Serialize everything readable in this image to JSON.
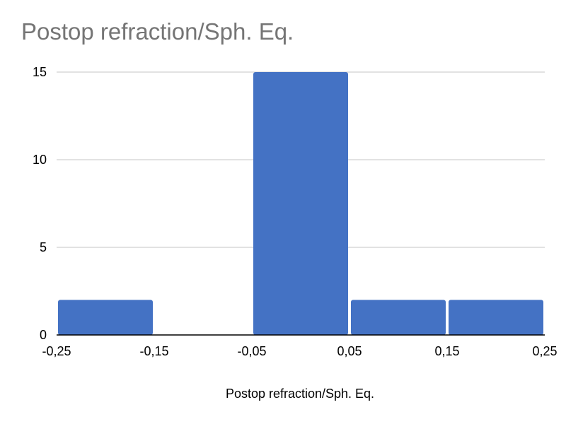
{
  "chart_data": {
    "type": "bar",
    "title": "Postop refraction/Sph. Eq.",
    "xlabel": "Postop refraction/Sph. Eq.",
    "ylabel": "",
    "x_ticks": [
      "-0,25",
      "-0,15",
      "-0,05",
      "0,05",
      "0,15",
      "0,25"
    ],
    "y_ticks": [
      "0",
      "5",
      "10",
      "15"
    ],
    "bins": [
      {
        "from": -0.25,
        "to": -0.15,
        "value": 2
      },
      {
        "from": -0.15,
        "to": -0.05,
        "value": 0
      },
      {
        "from": -0.05,
        "to": 0.05,
        "value": 15
      },
      {
        "from": 0.05,
        "to": 0.15,
        "value": 2
      },
      {
        "from": 0.15,
        "to": 0.25,
        "value": 2
      }
    ],
    "ylim": [
      0,
      15
    ],
    "xlim": [
      -0.25,
      0.25
    ],
    "grid": true,
    "bar_color": "#4472C4",
    "grid_color": "#D9D9D9"
  }
}
